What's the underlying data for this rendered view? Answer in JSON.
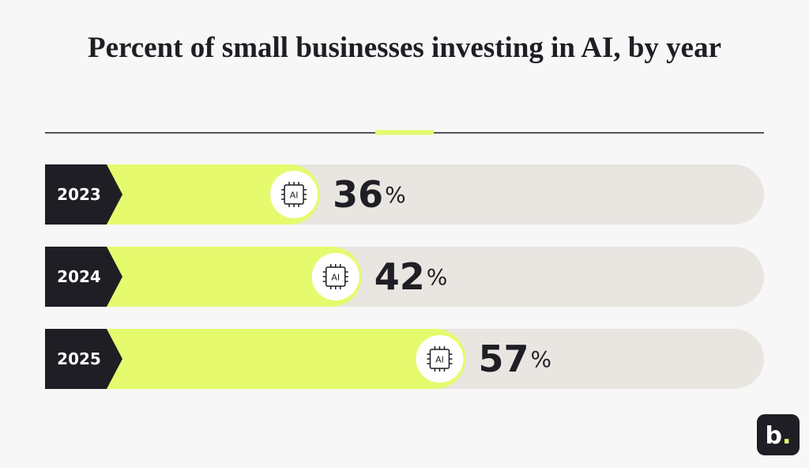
{
  "chart_data": {
    "type": "hbar",
    "title": "Percent of small businesses investing in AI, by year",
    "categories": [
      "2023",
      "2024",
      "2025"
    ],
    "values": [
      36,
      42,
      57
    ],
    "value_labels": [
      "36%",
      "42%",
      "57%"
    ],
    "xlim": [
      0,
      100
    ],
    "color": "#e6fa6e",
    "track_color": "#e9e5e1",
    "icon_text": "AI",
    "logo": "b."
  }
}
